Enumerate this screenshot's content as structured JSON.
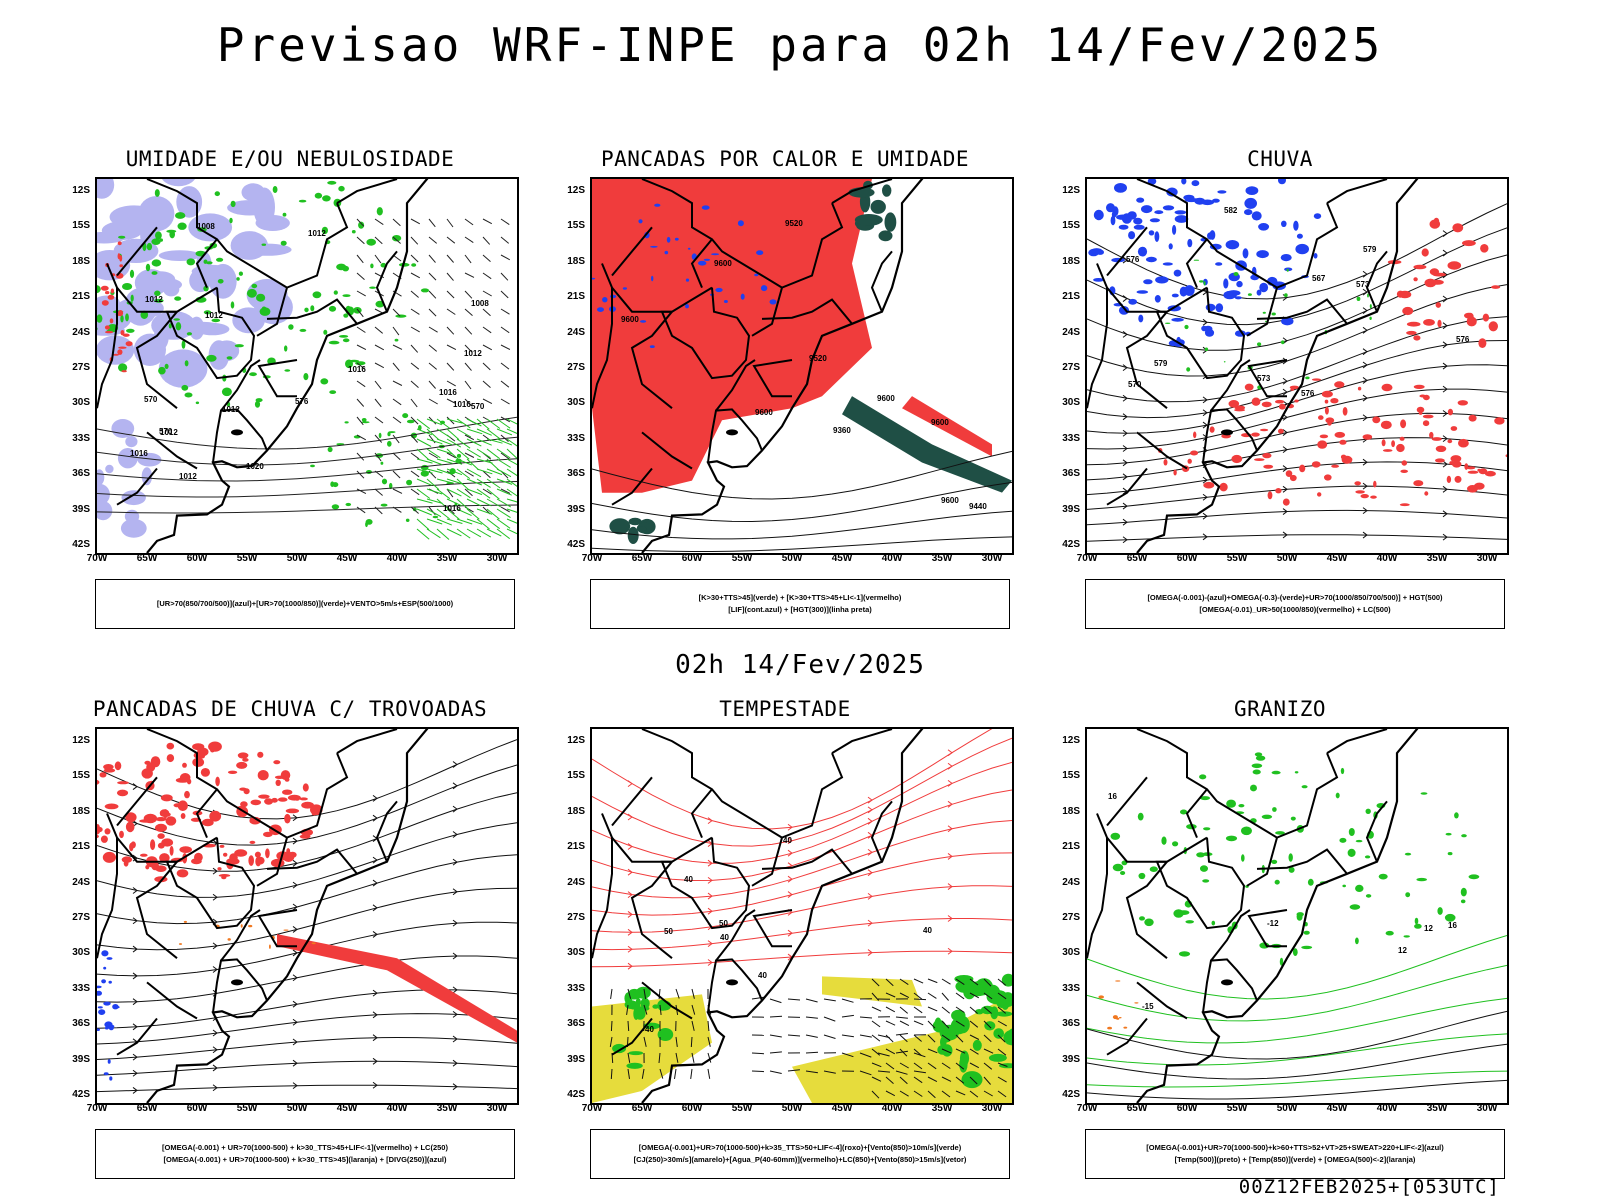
{
  "main_title": "Previsao WRF-INPE  para 02h 14/Fev/2025",
  "mid_title": "02h 14/Fev/2025",
  "footer": "00Z12FEB2025+[053UTC]",
  "lat_labels": [
    "12S",
    "15S",
    "18S",
    "21S",
    "24S",
    "27S",
    "30S",
    "33S",
    "36S",
    "39S",
    "42S"
  ],
  "lon_labels": [
    "70W",
    "65W",
    "60W",
    "55W",
    "50W",
    "45W",
    "40W",
    "35W",
    "30W"
  ],
  "colors": {
    "red": "#f03c3c",
    "blue": "#2040f0",
    "green": "#20c020",
    "lavender": "#b4b4f0",
    "darkgreen": "#1f4f45",
    "yellow": "#e6dc3c",
    "orange": "#f07820",
    "purple": "#a020c0"
  },
  "panels": [
    {
      "title": "UMIDADE E/OU NEBULOSIDADE",
      "legend": [
        "[UR>70(850/700/500)](azul)+[UR>70(1000/850)](verde)+VENTO>5m/s+ESP(500/1000)"
      ],
      "contour_labels": [
        "1012",
        "1012",
        "1012",
        "1020",
        "1016",
        "1012",
        "1016",
        "1012",
        "1012",
        "1008",
        "1012",
        "1016",
        "1016",
        "1008",
        "1016",
        "576",
        "570",
        "570",
        "570"
      ]
    },
    {
      "title": "PANCADAS POR CALOR E UMIDADE",
      "legend": [
        "[K>30+TTS>45](verde)  +  [K>30+TTS>45+LI<-1](vermelho)",
        "[LIF](cont.azul)  +  [HGT(300)](linha preta)"
      ],
      "contour_labels": [
        "9600",
        "9600",
        "9600",
        "9600",
        "9600",
        "9520",
        "9520",
        "9440",
        "9360",
        "9600"
      ]
    },
    {
      "title": "CHUVA",
      "legend": [
        "[OMEGA(-0.001)-(azul)+OMEGA(-0.3)-(verde)+UR>70(1000/850/700/500)]  +  HGT(500)",
        "[OMEGA(-0.01)_UR>50(1000/850)(vermelho)  +  LC(500)"
      ],
      "contour_labels": [
        "582",
        "579",
        "576",
        "573",
        "576",
        "579",
        "576",
        "573",
        "570",
        "567"
      ]
    },
    {
      "title": "PANCADAS DE CHUVA C/ TROVOADAS",
      "legend": [
        "[OMEGA(-0.001)  +  UR>70(1000-500)  +  k>30_TTS>45+LIF<-1](vermelho)  +  LC(250)",
        "[OMEGA(-0.001)  +  UR>70(1000-500)  +  k>30_TTS>45](laranja)  +  [DIVG(250)](azul)"
      ],
      "contour_labels": []
    },
    {
      "title": "TEMPESTADE",
      "legend": [
        "[OMEGA(-0.001)+UR>70(1000-500)+k>35_TTS>50+LIF<-4](roxo)+[Vento(850)>10m/s](verde)",
        "[CJ(250)>30m/s](amarelo)+[Agua_P(40-60mm)](vermelho)+LC(850)+[Vento(850)>15m/s](vetor)"
      ],
      "contour_labels": [
        "40",
        "40",
        "40",
        "40",
        "50",
        "50",
        "40",
        "40"
      ]
    },
    {
      "title": "GRANIZO",
      "legend": [
        "[OMEGA(-0.001)+UR>70(1000-500)+k>60+TTS>52+VT>25+SWEAT>220+LIF<-2](azul)",
        "[Temp(500)](preto)  +  [Temp(850)](verde)  +  [OMEGA(500)<-2](laranja)"
      ],
      "contour_labels": [
        "-12",
        "-15",
        "12",
        "16",
        "16",
        "12"
      ]
    }
  ]
}
